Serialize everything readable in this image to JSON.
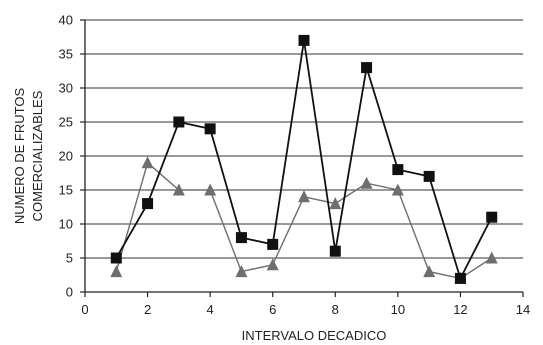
{
  "chart_data": {
    "type": "line",
    "title": "",
    "xlabel": "INTERVALO DECADICO",
    "ylabel_lines": [
      "NUMERO DE FRUTOS",
      "COMERCIALIZABLES"
    ],
    "xlim": [
      0,
      14
    ],
    "ylim": [
      0,
      40
    ],
    "x_ticks": [
      0,
      2,
      4,
      6,
      8,
      10,
      12,
      14
    ],
    "y_ticks": [
      0,
      5,
      10,
      15,
      20,
      25,
      30,
      35,
      40
    ],
    "grid": "horizontal",
    "legend": "none",
    "series": [
      {
        "marker": "square",
        "color": "#111111",
        "x": [
          1,
          2,
          3,
          4,
          5,
          6,
          7,
          8,
          9,
          10,
          11,
          12,
          13
        ],
        "values": [
          5,
          13,
          25,
          24,
          8,
          7,
          37,
          6,
          33,
          18,
          17,
          2,
          11
        ]
      },
      {
        "marker": "triangle",
        "color": "#6e6e6e",
        "x": [
          1,
          2,
          3,
          4,
          5,
          6,
          7,
          8,
          9,
          10,
          11,
          12,
          13
        ],
        "values": [
          3,
          19,
          15,
          15,
          3,
          4,
          14,
          13,
          16,
          15,
          3,
          2,
          5
        ]
      }
    ]
  }
}
